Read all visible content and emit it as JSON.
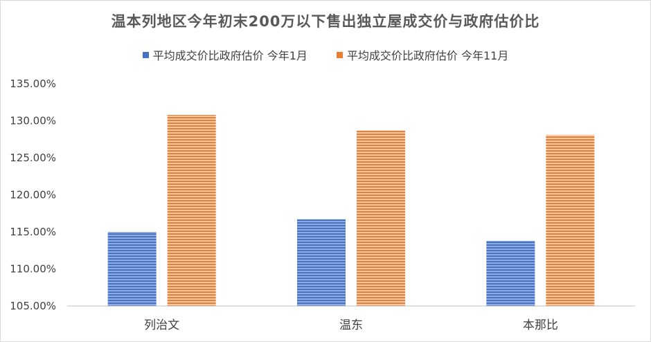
{
  "chart_data": {
    "type": "bar",
    "title": "温本列地区今年初末200万以下售出独立屋成交价与政府估价比",
    "categories": [
      "列治文",
      "温东",
      "本那比"
    ],
    "series": [
      {
        "name": "平均成交价比政府估价 今年1月",
        "values": [
          115.0,
          116.7,
          113.8
        ],
        "color": "#4472c4"
      },
      {
        "name": "平均成交价比政府估价 今年11月",
        "values": [
          130.8,
          128.7,
          128.1
        ],
        "color": "#ed7d31"
      }
    ],
    "ylim": [
      105,
      135
    ],
    "yticks": [
      "105.00%",
      "110.00%",
      "115.00%",
      "120.00%",
      "125.00%",
      "130.00%",
      "135.00%"
    ],
    "legend": "top",
    "grid": false
  }
}
